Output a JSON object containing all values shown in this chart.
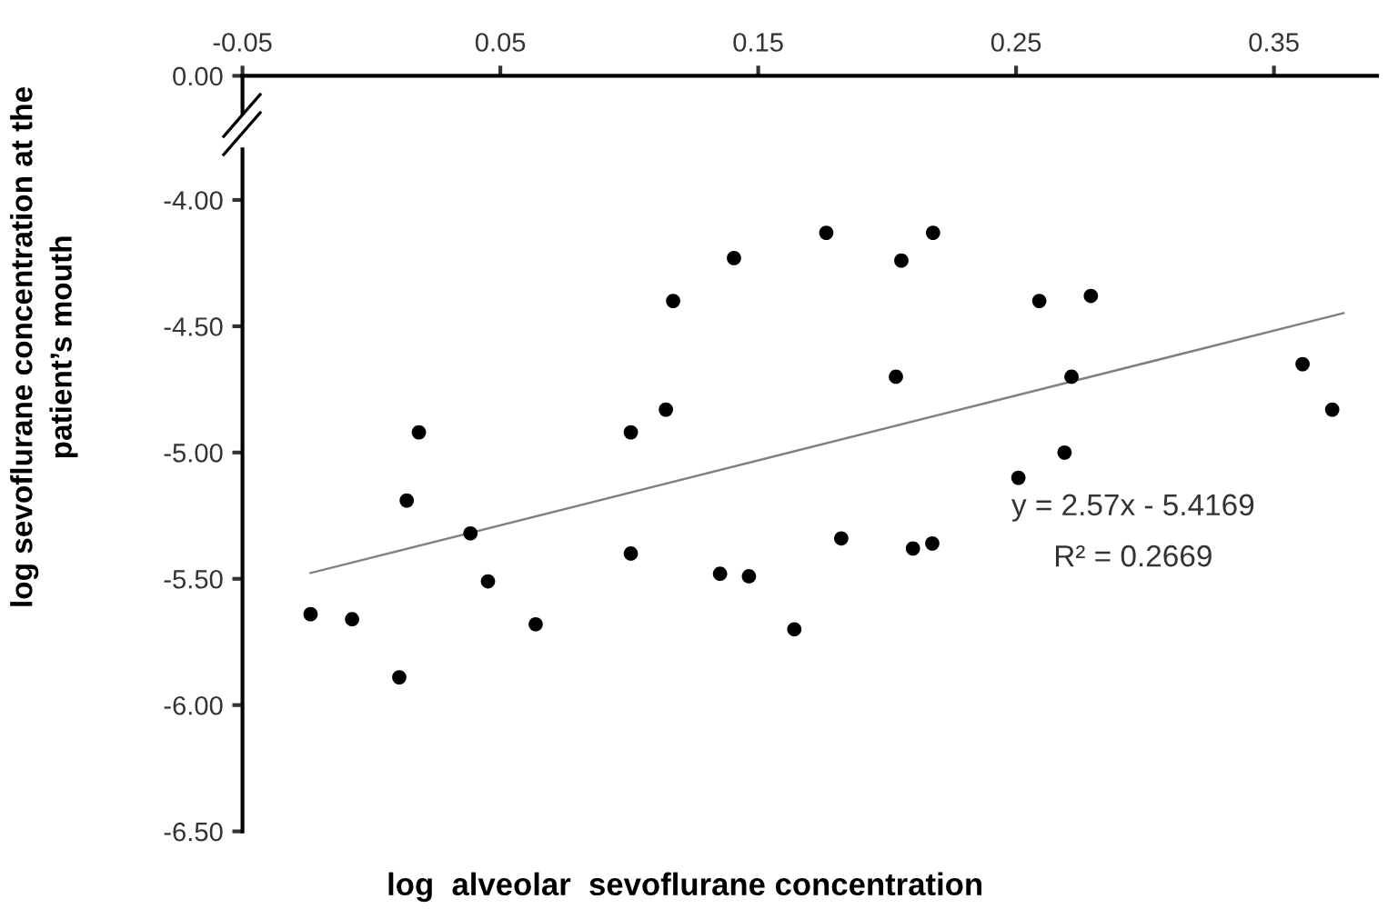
{
  "chart_data": {
    "type": "scatter",
    "xlabel": "log  alveolar  sevoflurane concentration",
    "ylabel": "log sevoflurane concentration at the\npatient’s mouth",
    "xlim": [
      -0.05,
      0.39
    ],
    "xticks": [
      -0.05,
      0.05,
      0.15,
      0.25,
      0.35
    ],
    "ylim": [
      -6.5,
      -3.8
    ],
    "yticks": [
      {
        "value": -6.5,
        "label": "-6.50"
      },
      {
        "value": -6.0,
        "label": "-6.00"
      },
      {
        "value": -5.5,
        "label": "-5.50"
      },
      {
        "value": -5.0,
        "label": "-5.00"
      },
      {
        "value": -4.5,
        "label": "-4.50"
      },
      {
        "value": -4.0,
        "label": "-4.00"
      }
    ],
    "series": [
      {
        "color": "#000000",
        "marker": "circle",
        "x": [
          -0.0236,
          -0.0075,
          0.0108,
          0.0137,
          0.0184,
          0.0384,
          0.0452,
          0.0637,
          0.1006,
          0.1142,
          0.1006,
          0.1352,
          0.117,
          0.1406,
          0.1764,
          0.2055,
          0.2178,
          0.259,
          0.279,
          0.2034,
          0.2715,
          0.3611,
          0.3726,
          0.1464,
          0.164,
          0.1822,
          0.21,
          0.2175,
          0.2509,
          0.2688
        ],
        "values": [
          -5.64,
          -5.66,
          -5.89,
          -5.19,
          -4.92,
          -5.32,
          -5.51,
          -5.68,
          -4.92,
          -4.83,
          -5.4,
          -5.48,
          -4.4,
          -4.23,
          -4.13,
          -4.24,
          -4.13,
          -4.4,
          -4.38,
          -4.7,
          -4.7,
          -4.65,
          -4.83,
          -5.49,
          -5.7,
          -5.34,
          -5.38,
          -5.36,
          -5.1,
          -5.0
        ]
      },
      {
        "type": "line",
        "color": "#808080",
        "x": [
          -0.0236,
          0.377
        ],
        "values": [
          -5.477,
          -4.448
        ]
      }
    ],
    "annotations": [
      "0.00",
      "y = 2.57x - 5.4169",
      "R² = 0.2669"
    ]
  }
}
